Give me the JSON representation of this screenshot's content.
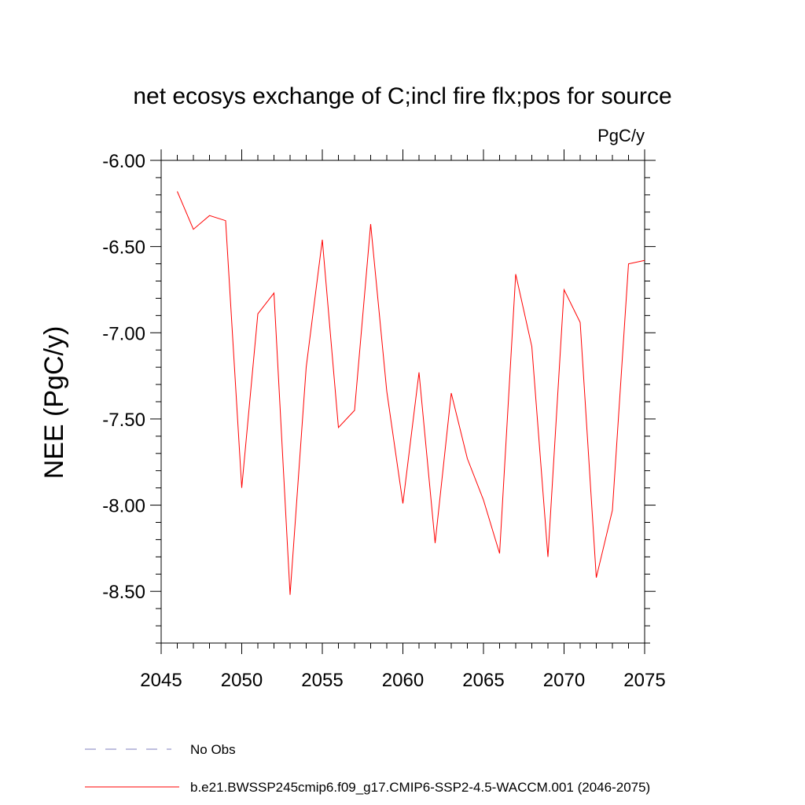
{
  "chart_data": {
    "type": "line",
    "title": "net ecosys exchange of C;incl fire flx;pos for source",
    "units": "PgC/y",
    "ylabel": "NEE  (PgC/y)",
    "xlabel": "",
    "xlim": [
      2045,
      2075
    ],
    "ylim": [
      -8.8,
      -6.0
    ],
    "xticks": [
      2045,
      2050,
      2055,
      2060,
      2065,
      2070,
      2075
    ],
    "xtick_labels": [
      "2045",
      "2050",
      "2055",
      "2060",
      "2065",
      "2070",
      "2075"
    ],
    "yticks": [
      -6.0,
      -6.5,
      -7.0,
      -7.5,
      -8.0,
      -8.5
    ],
    "ytick_labels": [
      "-6.00",
      "-6.50",
      "-7.00",
      "-7.50",
      "-8.00",
      "-8.50"
    ],
    "grid": false,
    "series": [
      {
        "name": "b.e21.BWSSP245cmip6.f09_g17.CMIP6-SSP2-4.5-WACCM.001 (2046-2075)",
        "color": "#ff0000",
        "style": "solid",
        "x": [
          2046,
          2047,
          2048,
          2049,
          2050,
          2051,
          2052,
          2053,
          2054,
          2055,
          2056,
          2057,
          2058,
          2059,
          2060,
          2061,
          2062,
          2063,
          2064,
          2065,
          2066,
          2067,
          2068,
          2069,
          2070,
          2071,
          2072,
          2073,
          2074,
          2075
        ],
        "y": [
          -6.18,
          -6.4,
          -6.32,
          -6.35,
          -7.9,
          -6.89,
          -6.77,
          -8.52,
          -7.2,
          -6.46,
          -7.55,
          -7.45,
          -6.37,
          -7.34,
          -7.99,
          -7.23,
          -8.22,
          -7.35,
          -7.73,
          -7.97,
          -8.28,
          -6.66,
          -7.08,
          -8.3,
          -6.75,
          -6.94,
          -8.42,
          -8.03,
          -6.6,
          -6.58
        ]
      }
    ],
    "legend": [
      {
        "label": "No Obs",
        "color": "#7f7fbf",
        "style": "dashed"
      },
      {
        "label": "b.e21.BWSSP245cmip6.f09_g17.CMIP6-SSP2-4.5-WACCM.001 (2046-2075)",
        "color": "#ff0000",
        "style": "solid"
      }
    ],
    "legend_position": "bottom-left"
  }
}
